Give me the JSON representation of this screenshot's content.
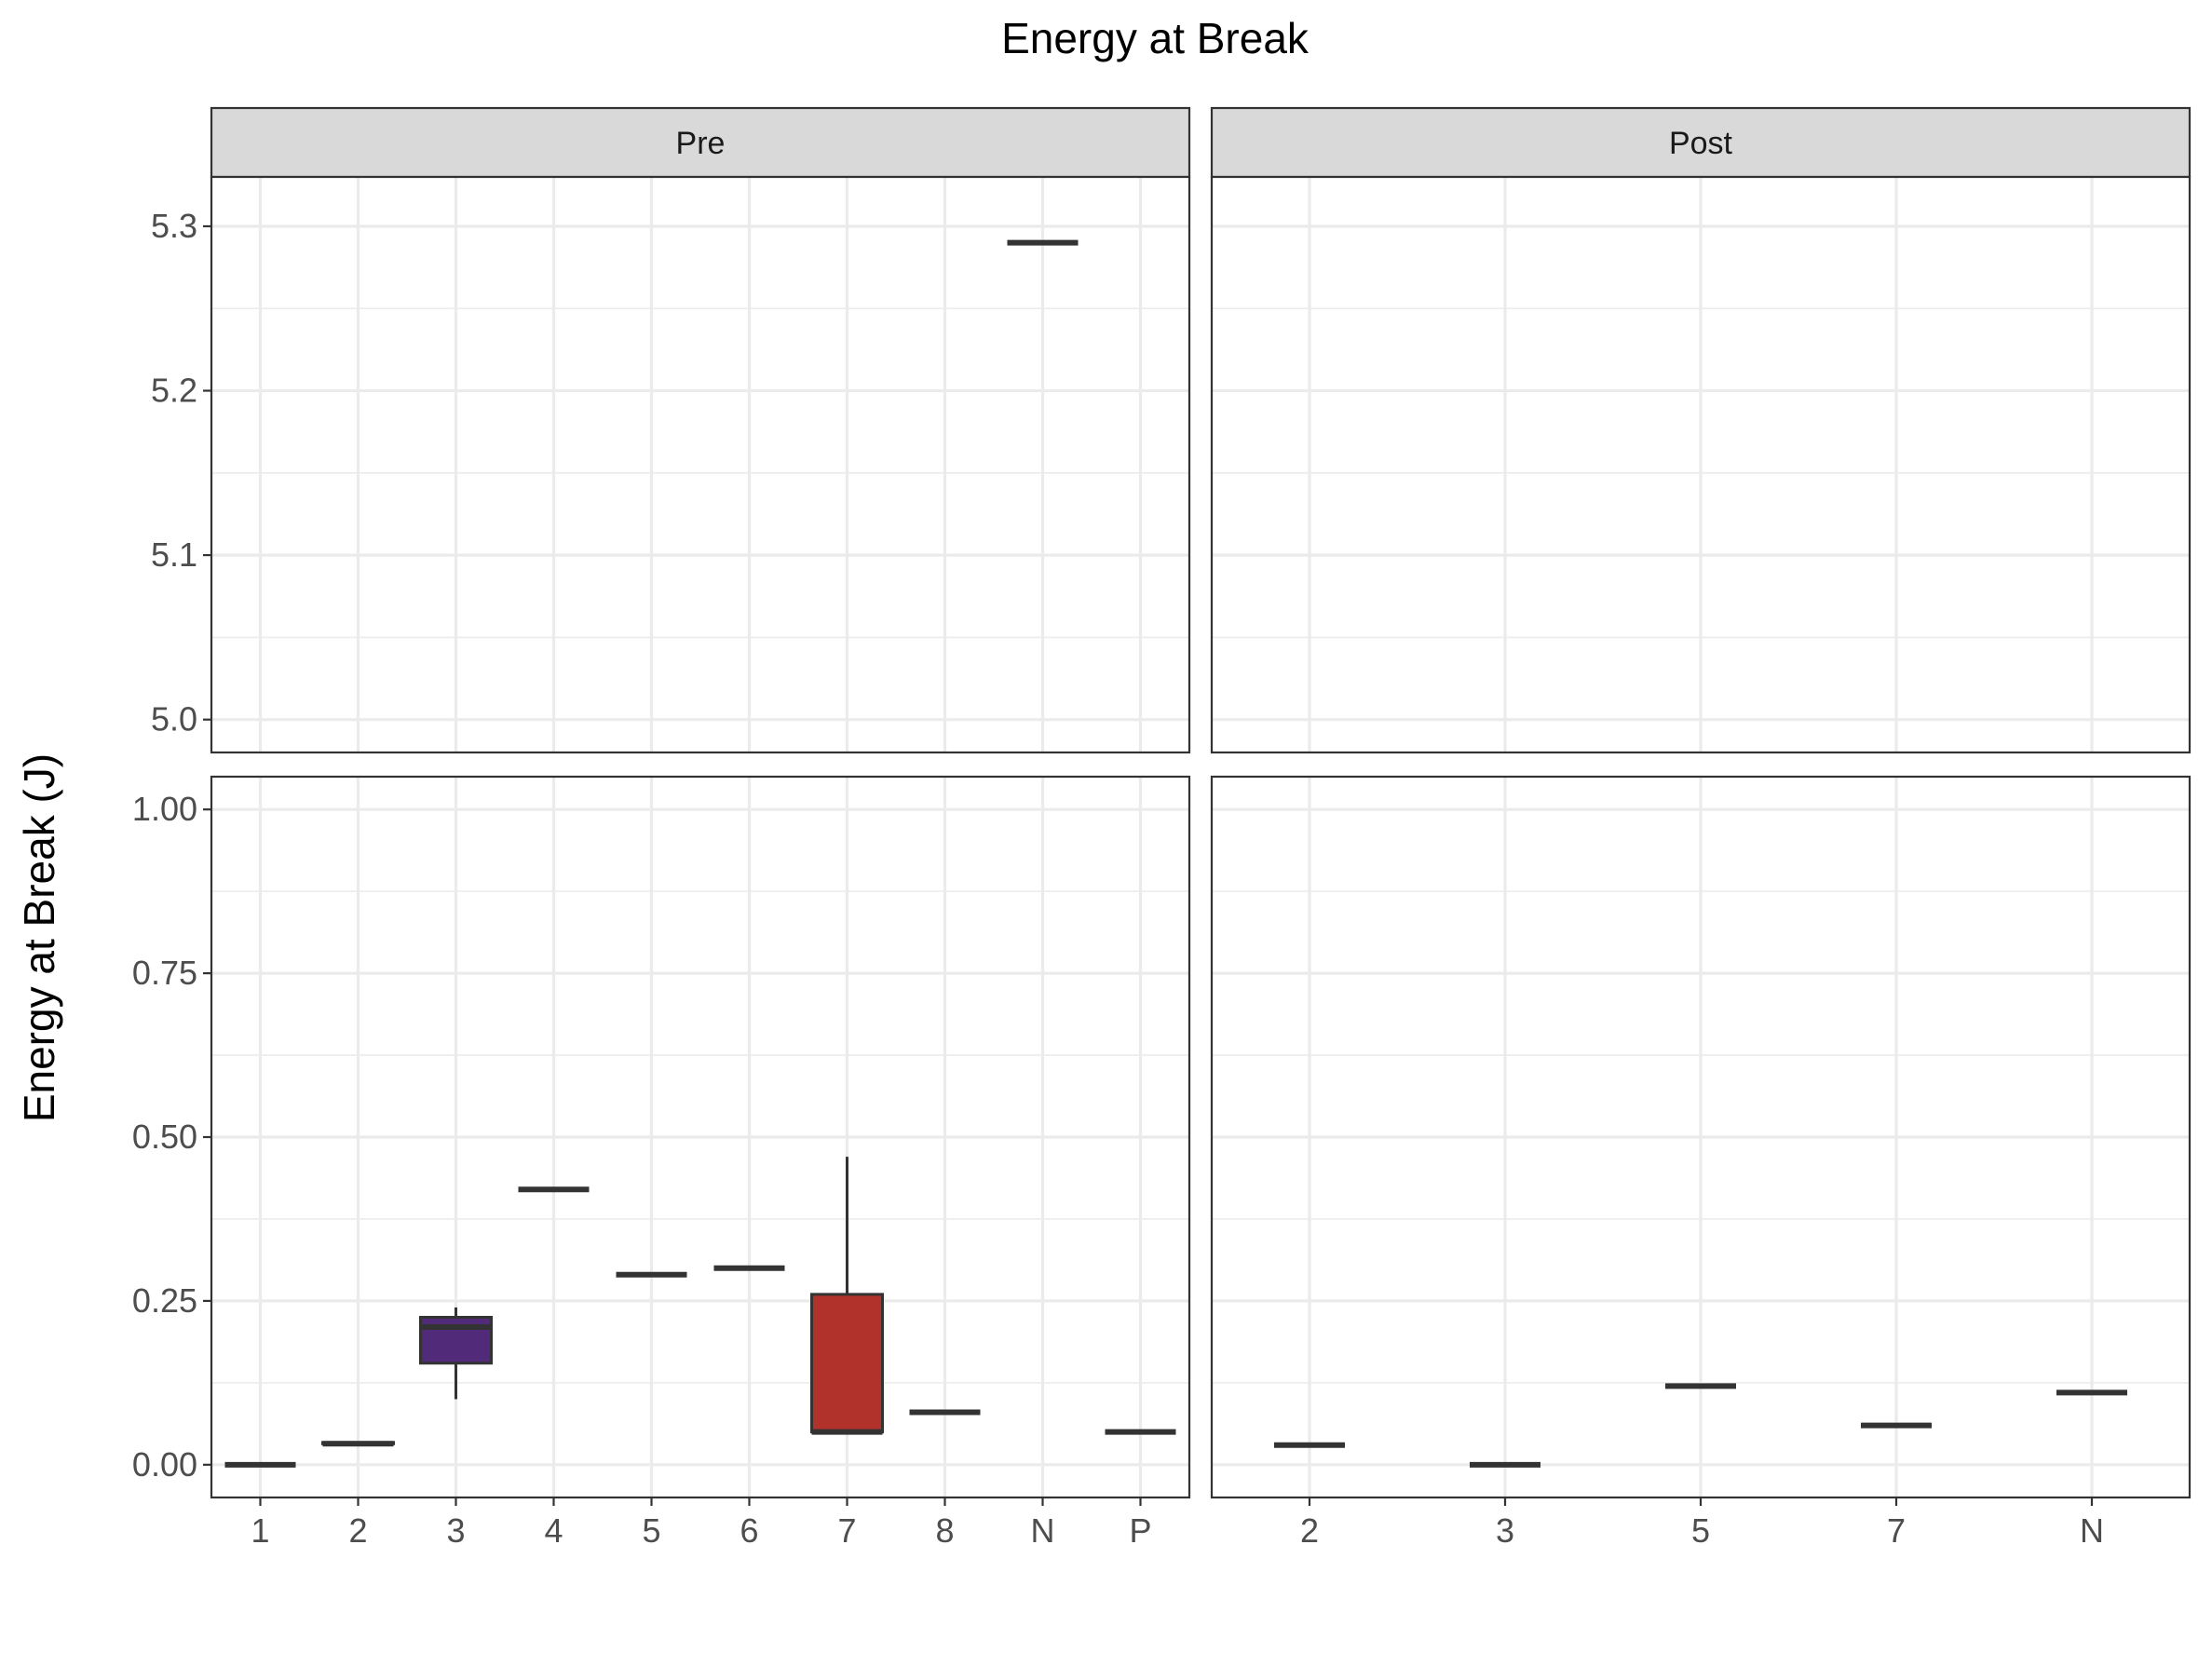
{
  "chart_data": {
    "type": "boxplot",
    "title": "Energy at Break",
    "ylabel": "Energy at Break (J)",
    "xlabel": "",
    "facets": [
      "Pre",
      "Post"
    ],
    "y_bands": [
      {
        "name": "upper",
        "ylim": [
          4.98,
          5.33
        ],
        "ticks": [
          "5.0",
          "5.1",
          "5.2",
          "5.3"
        ]
      },
      {
        "name": "lower",
        "ylim": [
          -0.05,
          1.05
        ],
        "ticks": [
          "0.00",
          "0.25",
          "0.50",
          "0.75",
          "1.00"
        ]
      }
    ],
    "colors": {
      "3": "#522a7a",
      "7": "#b0322b",
      "default": "#ffffff"
    },
    "panels": {
      "Pre": {
        "categories": [
          "1",
          "2",
          "3",
          "4",
          "5",
          "6",
          "7",
          "8",
          "N",
          "P"
        ],
        "boxes": [
          {
            "category": "1",
            "band": "lower",
            "min": 0.0,
            "q1": 0.0,
            "median": 0.0,
            "q3": 0.0,
            "max": 0.0
          },
          {
            "category": "2",
            "band": "lower",
            "min": 0.032,
            "q1": 0.032,
            "median": 0.032,
            "q3": 0.034,
            "max": 0.034
          },
          {
            "category": "3",
            "band": "lower",
            "min": 0.1,
            "q1": 0.155,
            "median": 0.21,
            "q3": 0.225,
            "max": 0.24
          },
          {
            "category": "4",
            "band": "lower",
            "min": 0.42,
            "q1": 0.42,
            "median": 0.42,
            "q3": 0.42,
            "max": 0.42
          },
          {
            "category": "5",
            "band": "lower",
            "min": 0.29,
            "q1": 0.29,
            "median": 0.29,
            "q3": 0.29,
            "max": 0.29
          },
          {
            "category": "6",
            "band": "lower",
            "min": 0.3,
            "q1": 0.3,
            "median": 0.3,
            "q3": 0.3,
            "max": 0.3
          },
          {
            "category": "7",
            "band": "lower",
            "min": 0.05,
            "q1": 0.05,
            "median": 0.05,
            "q3": 0.26,
            "max": 0.47
          },
          {
            "category": "8",
            "band": "lower",
            "min": 0.08,
            "q1": 0.08,
            "median": 0.08,
            "q3": 0.08,
            "max": 0.08
          },
          {
            "category": "N",
            "band": "upper",
            "min": 5.29,
            "q1": 5.29,
            "median": 5.29,
            "q3": 5.29,
            "max": 5.29
          },
          {
            "category": "P",
            "band": "lower",
            "min": 0.05,
            "q1": 0.05,
            "median": 0.05,
            "q3": 0.05,
            "max": 0.05
          }
        ]
      },
      "Post": {
        "categories": [
          "2",
          "3",
          "5",
          "7",
          "N"
        ],
        "boxes": [
          {
            "category": "2",
            "band": "lower",
            "min": 0.03,
            "q1": 0.03,
            "median": 0.03,
            "q3": 0.03,
            "max": 0.03
          },
          {
            "category": "3",
            "band": "lower",
            "min": 0.0,
            "q1": 0.0,
            "median": 0.0,
            "q3": 0.0,
            "max": 0.0
          },
          {
            "category": "5",
            "band": "lower",
            "min": 0.12,
            "q1": 0.12,
            "median": 0.12,
            "q3": 0.12,
            "max": 0.12
          },
          {
            "category": "7",
            "band": "lower",
            "min": 0.06,
            "q1": 0.06,
            "median": 0.06,
            "q3": 0.06,
            "max": 0.06
          },
          {
            "category": "N",
            "band": "lower",
            "min": 0.11,
            "q1": 0.11,
            "median": 0.11,
            "q3": 0.11,
            "max": 0.11
          }
        ]
      }
    }
  }
}
